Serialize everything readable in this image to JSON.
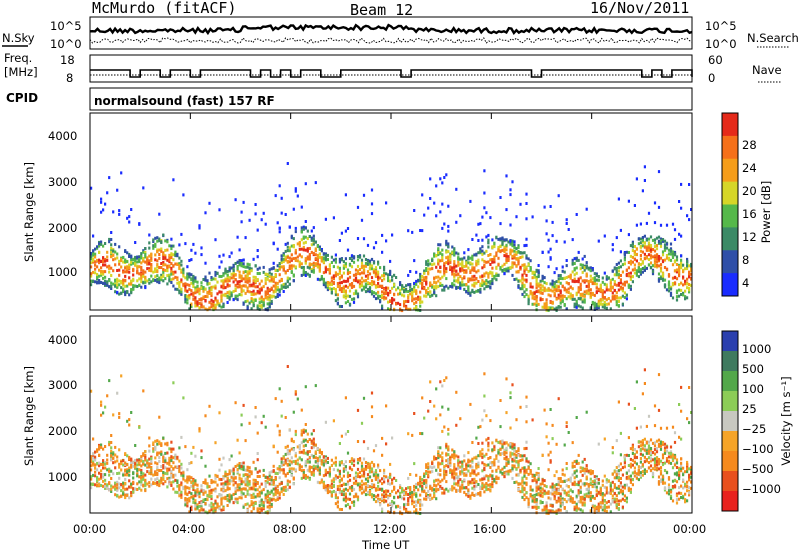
{
  "header": {
    "station": "McMurdo (fitACF)",
    "beam": "Beam 12",
    "date": "16/Nov/2011"
  },
  "noise_panel": {
    "left_label": "N.Sky",
    "right_label": "N.Search",
    "left_ticks": [
      "10^5",
      "10^0"
    ],
    "right_ticks": [
      "10^5",
      "10^0"
    ]
  },
  "freq_panel": {
    "left_label_1": "Freq.",
    "left_label_2": "[MHz]",
    "right_label": "Nave",
    "left_ticks": [
      "18",
      "8"
    ],
    "right_ticks": [
      "60",
      "0"
    ]
  },
  "cpid": {
    "label": "CPID",
    "program": "normalsound (fast) 157 RF"
  },
  "power_panel": {
    "ylabel": "Slant Range [km]",
    "y_ticks": [
      "4000",
      "3000",
      "2000",
      "1000"
    ],
    "colorbar_label": "Power [dB]",
    "colorbar_ticks": [
      "28",
      "24",
      "20",
      "16",
      "12",
      "8",
      "4"
    ]
  },
  "velocity_panel": {
    "ylabel": "Slant Range [km]",
    "y_ticks": [
      "4000",
      "3000",
      "2000",
      "1000"
    ],
    "colorbar_label": "Velocity [m s⁻¹]",
    "colorbar_ticks": [
      "1000",
      "500",
      "100",
      "25",
      "−25",
      "−100",
      "−500",
      "−1000"
    ]
  },
  "x_axis": {
    "ticks": [
      "00:00",
      "04:00",
      "08:00",
      "12:00",
      "16:00",
      "20:00",
      "00:00"
    ],
    "xlabel": "Time UT"
  },
  "colors": {
    "power_scale": [
      "#1a2cff",
      "#2f4fa8",
      "#3b8a66",
      "#55b84a",
      "#d6d628",
      "#f59d1a",
      "#f5701a",
      "#e52a1a"
    ],
    "velocity_scale": [
      "#2a3fae",
      "#3f7a5f",
      "#53a84a",
      "#8ccc57",
      "#c8c8c0",
      "#f5a428",
      "#f58a1e",
      "#e8501e",
      "#e8221e"
    ]
  },
  "chart_data": [
    {
      "type": "line",
      "name": "noise",
      "x_range_hours": [
        0,
        24
      ],
      "y_scale": "log",
      "ylim": [
        "10^0",
        "10^5"
      ]
    },
    {
      "type": "line",
      "name": "frequency",
      "x_range_hours": [
        0,
        24
      ],
      "ylim_left": [
        8,
        18
      ],
      "ylim_right": [
        0,
        60
      ]
    },
    {
      "type": "heatmap",
      "name": "power",
      "x_range_hours": [
        0,
        24
      ],
      "ylim": [
        180,
        4500
      ],
      "zlim": [
        0,
        30
      ],
      "scatter_band_km": [
        600,
        1500
      ],
      "peak_power_db": 28
    },
    {
      "type": "heatmap",
      "name": "velocity",
      "x_range_hours": [
        0,
        24
      ],
      "ylim": [
        180,
        4500
      ],
      "zlim": [
        -1000,
        1000
      ],
      "scatter_band_km": [
        600,
        2400
      ],
      "dominant_velocity_ms": -100
    }
  ]
}
